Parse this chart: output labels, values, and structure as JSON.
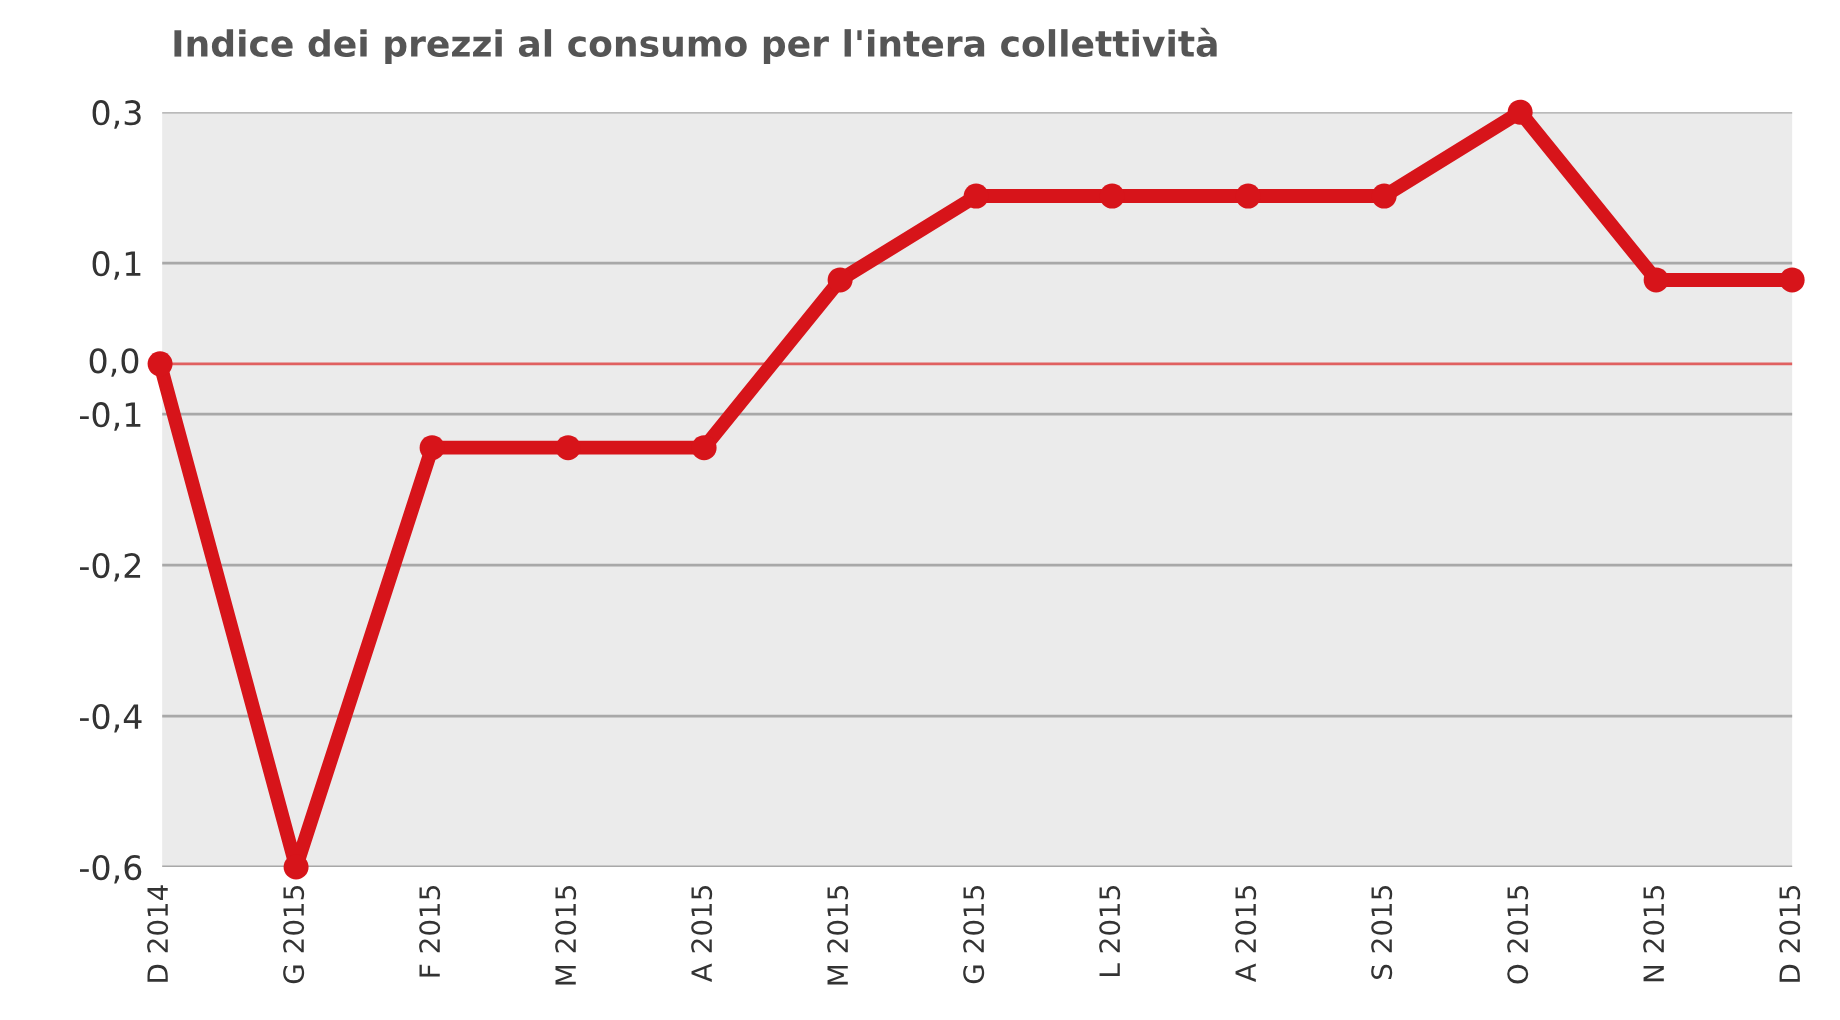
{
  "chart_data": {
    "type": "line",
    "title": "Indice dei prezzi al consumo per l'intera collettività",
    "categories": [
      "D 2014",
      "G 2015",
      "F 2015",
      "M 2015",
      "A 2015",
      "M 2015",
      "G 2015",
      "L 2015",
      "A 2015",
      "S 2015",
      "O 2015",
      "N 2015",
      "D 2015"
    ],
    "series": [
      {
        "color": "#d7141a",
        "values": [
          0.0,
          -0.6,
          -0.1,
          -0.1,
          -0.1,
          0.1,
          0.2,
          0.2,
          0.2,
          0.2,
          0.3,
          0.1,
          0.1
        ]
      }
    ],
    "ylim": [
      -0.6,
      0.3
    ],
    "yticks": [
      {
        "value": -0.6,
        "label": "-0,6"
      },
      {
        "value": -0.42,
        "label": "-0,4"
      },
      {
        "value": -0.24,
        "label": "-0,2"
      },
      {
        "value": -0.06,
        "label": "-0,1"
      },
      {
        "value": 0.12,
        "label": "0,1"
      },
      {
        "value": 0.3,
        "label": "0,3"
      }
    ],
    "ref_lines": [
      {
        "axis": "y",
        "value": 0,
        "label": "0,0",
        "color": "#e06060"
      }
    ],
    "grid": "y",
    "marker": "circle",
    "line_style": "solid",
    "legend": false
  }
}
